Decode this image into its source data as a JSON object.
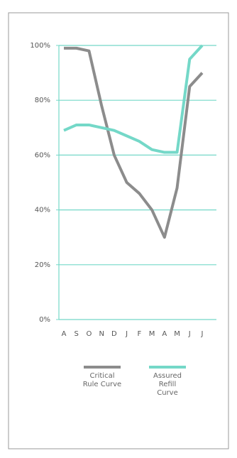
{
  "chart_data": {
    "type": "line",
    "categories": [
      "A",
      "S",
      "O",
      "N",
      "D",
      "J",
      "F",
      "M",
      "A",
      "M",
      "J",
      "J"
    ],
    "series": [
      {
        "name": "Critical Rule Curve",
        "color": "#8c8c8c",
        "values": [
          99,
          99,
          98,
          78,
          60,
          50,
          46,
          40,
          30,
          48,
          85,
          90
        ]
      },
      {
        "name": "Assured Refill Curve",
        "color": "#74d8c8",
        "values": [
          69,
          71,
          71,
          70,
          69,
          67,
          65,
          62,
          61,
          61,
          95,
          100
        ]
      }
    ],
    "ylim": [
      0,
      100
    ],
    "yticks": [
      {
        "value": 0,
        "label": "0%"
      },
      {
        "value": 20,
        "label": "20%"
      },
      {
        "value": 40,
        "label": "40%"
      },
      {
        "value": 60,
        "label": "60%"
      },
      {
        "value": 80,
        "label": "80%"
      },
      {
        "value": 100,
        "label": "100%"
      }
    ],
    "grid": true
  }
}
